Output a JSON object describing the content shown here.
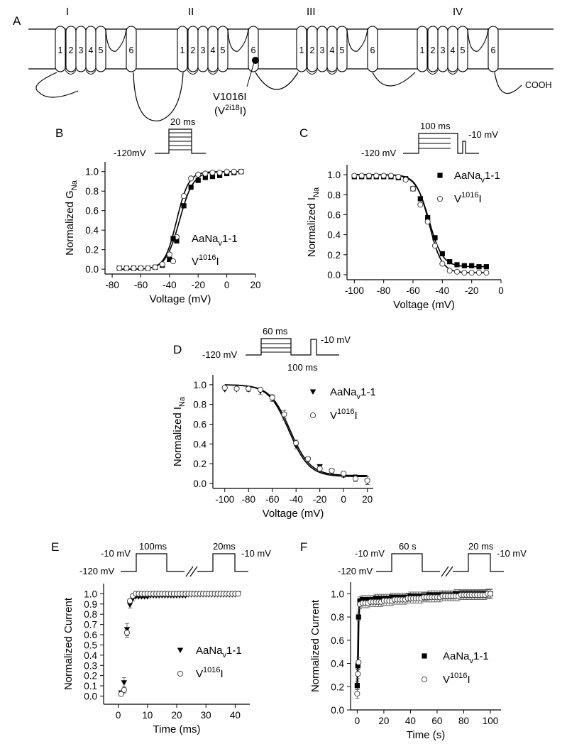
{
  "panel_a": {
    "letter": "A",
    "domains": [
      "I",
      "II",
      "III",
      "IV"
    ],
    "segments": [
      "1",
      "2",
      "3",
      "4",
      "5",
      "6"
    ],
    "mutation_label": "V1016I",
    "mutation_sub_pre": "(V",
    "mutation_sub_sup": "2i18",
    "mutation_sub_post": "I)",
    "terminus": "COOH"
  },
  "legend": {
    "wt_pre": "AaNa",
    "wt_sub": "v",
    "wt_post": "1-1",
    "mut_pre": "V",
    "mut_sup": "1016",
    "mut_post": "I"
  },
  "protocols": {
    "b": {
      "duration": "20 ms",
      "hold": "-120mV"
    },
    "c": {
      "duration": "100 ms",
      "test": "-10 mV",
      "hold": "-120 mV"
    },
    "d": {
      "duration": "60 ms",
      "test": "-10 mV",
      "hold": "-120 mV",
      "gap": "100 ms"
    },
    "e": {
      "pulse1": "100ms",
      "pulse2": "20ms",
      "v1": "-10 mV",
      "v2": "-10 mV",
      "hold": "-120 mV"
    },
    "f": {
      "pulse1": "60 s",
      "pulse2": "20 ms",
      "v1": "-10 mV",
      "v2": "-10 mV",
      "hold": "-120 mV"
    }
  },
  "chart_data": [
    {
      "panel": "B",
      "type": "scatter",
      "xlabel": "Voltage (mV)",
      "ylabel_pre": "Normalized G",
      "ylabel_sub": "Na",
      "xlim": [
        -85,
        20
      ],
      "ylim": [
        -0.05,
        1.1
      ],
      "xticks": [
        -80,
        -60,
        -40,
        -20,
        0,
        20
      ],
      "yticks": [
        0.0,
        0.2,
        0.4,
        0.6,
        0.8,
        1.0
      ],
      "series": [
        {
          "marker": "filled-square",
          "fit_v50": -33,
          "fit_k": 4.8,
          "x": [
            -75,
            -70,
            -65,
            -60,
            -55,
            -50,
            -45,
            -40,
            -35,
            -30,
            -25,
            -20,
            -15,
            -10,
            -5,
            0,
            5,
            10
          ],
          "y": [
            0.01,
            0.01,
            0.01,
            0.01,
            0.01,
            0.02,
            0.04,
            0.1,
            0.29,
            0.65,
            0.84,
            0.91,
            0.94,
            0.95,
            0.96,
            0.98,
            0.99,
            1.0
          ]
        },
        {
          "marker": "open-circle",
          "fit_v50": -35,
          "fit_k": 4.2,
          "x": [
            -75,
            -70,
            -65,
            -60,
            -55,
            -50,
            -45,
            -40,
            -35,
            -30,
            -25,
            -20,
            -15,
            -10,
            -5,
            0,
            5,
            10
          ],
          "y": [
            0.01,
            0.01,
            0.01,
            0.01,
            0.01,
            0.02,
            0.05,
            0.15,
            0.33,
            0.75,
            0.93,
            0.97,
            0.98,
            0.99,
            0.99,
            1.0,
            1.0,
            1.0
          ]
        }
      ]
    },
    {
      "panel": "C",
      "type": "scatter",
      "xlabel": "Voltage (mV)",
      "ylabel_pre": "Normalized I",
      "ylabel_sub": "Na",
      "xlim": [
        -105,
        0
      ],
      "ylim": [
        -0.05,
        1.1
      ],
      "xticks": [
        -100,
        -80,
        -60,
        -40,
        -20,
        0
      ],
      "yticks": [
        0.0,
        0.2,
        0.4,
        0.6,
        0.8,
        1.0
      ],
      "series": [
        {
          "marker": "filled-square",
          "fit_v50": -49,
          "fit_k": 4.6,
          "fit_c": 0.08,
          "x": [
            -100,
            -95,
            -90,
            -85,
            -80,
            -75,
            -70,
            -65,
            -60,
            -55,
            -50,
            -45,
            -40,
            -35,
            -30,
            -25,
            -20,
            -15,
            -10
          ],
          "y": [
            0.98,
            0.98,
            0.98,
            0.98,
            0.98,
            0.98,
            0.97,
            0.96,
            0.86,
            0.76,
            0.57,
            0.37,
            0.21,
            0.13,
            0.1,
            0.09,
            0.09,
            0.08,
            0.08
          ]
        },
        {
          "marker": "open-circle",
          "fit_v50": -49,
          "fit_k": 4.3,
          "fit_c": 0.02,
          "x": [
            -100,
            -95,
            -90,
            -85,
            -80,
            -75,
            -70,
            -65,
            -60,
            -55,
            -50,
            -45,
            -40,
            -35,
            -30,
            -25,
            -20,
            -15,
            -10
          ],
          "y": [
            0.99,
            0.99,
            0.99,
            0.99,
            0.99,
            0.99,
            0.98,
            0.95,
            0.86,
            0.7,
            0.53,
            0.29,
            0.11,
            0.04,
            0.03,
            0.02,
            0.02,
            0.02,
            0.02
          ]
        }
      ]
    },
    {
      "panel": "D",
      "type": "scatter",
      "xlabel": "Voltage (mV)",
      "ylabel_pre": "Normalized I",
      "ylabel_sub": "Na",
      "xlim": [
        -110,
        25
      ],
      "ylim": [
        -0.05,
        1.1
      ],
      "xticks": [
        -100,
        -80,
        -60,
        -40,
        -20,
        0,
        20
      ],
      "yticks": [
        0.0,
        0.2,
        0.4,
        0.6,
        0.8,
        1.0
      ],
      "series": [
        {
          "marker": "filled-triangle-down",
          "fit_v50": -46,
          "fit_k": 8.5,
          "fit_c": 0.07,
          "x": [
            -100,
            -90,
            -80,
            -70,
            -60,
            -50,
            -40,
            -30,
            -20,
            -10,
            0,
            10,
            20
          ],
          "y": [
            0.95,
            0.95,
            0.95,
            0.93,
            0.86,
            0.69,
            0.38,
            0.24,
            0.17,
            0.12,
            0.08,
            0.06,
            0.02
          ],
          "err": [
            0.01,
            0.01,
            0.02,
            0.03,
            0.03,
            0.05,
            0.03,
            0.02,
            0.02,
            0.02,
            0.02,
            0.03,
            0.03
          ]
        },
        {
          "marker": "open-circle",
          "fit_v50": -45,
          "fit_k": 8.5,
          "fit_c": 0.08,
          "x": [
            -100,
            -90,
            -80,
            -70,
            -60,
            -50,
            -40,
            -30,
            -20,
            -10,
            0,
            10,
            20
          ],
          "y": [
            0.97,
            0.96,
            0.96,
            0.95,
            0.87,
            0.7,
            0.41,
            0.25,
            0.15,
            0.13,
            0.1,
            0.05,
            0.03
          ],
          "err": [
            0.01,
            0.01,
            0.01,
            0.02,
            0.03,
            0.04,
            0.03,
            0.02,
            0.02,
            0.02,
            0.02,
            0.03,
            0.04
          ]
        }
      ]
    },
    {
      "panel": "E",
      "type": "scatter",
      "xlabel": "Time (ms)",
      "ylabel": "Normalized Current",
      "xlim": [
        -5,
        45
      ],
      "ylim": [
        -0.08,
        1.1
      ],
      "xticks": [
        0,
        10,
        20,
        30,
        40
      ],
      "yticks": [
        0.0,
        0.1,
        0.2,
        0.3,
        0.4,
        0.5,
        0.6,
        0.7,
        0.8,
        0.9,
        1.0
      ],
      "series": [
        {
          "marker": "filled-triangle-down",
          "x": [
            1,
            2,
            3,
            4,
            5,
            6,
            7,
            8,
            9,
            10,
            11,
            12,
            13,
            14,
            15,
            16,
            17,
            18,
            19,
            20,
            21,
            22,
            23,
            24,
            25,
            26,
            27,
            28,
            29,
            30,
            31,
            32,
            33,
            34,
            35,
            36,
            37,
            38,
            39,
            40,
            41
          ],
          "y": [
            0.03,
            0.13,
            0.65,
            0.89,
            0.95,
            0.97,
            0.97,
            0.97,
            0.97,
            0.97,
            0.98,
            0.98,
            0.98,
            0.98,
            0.98,
            0.98,
            0.98,
            0.98,
            0.98,
            0.98,
            0.98,
            0.98,
            0.98,
            0.99,
            0.99,
            0.99,
            0.99,
            0.99,
            0.99,
            0.99,
            0.99,
            0.99,
            0.99,
            0.99,
            0.99,
            0.99,
            0.99,
            0.99,
            0.99,
            0.99,
            1.0
          ],
          "err": [
            0.02,
            0.05,
            0.06,
            0.03,
            0.02,
            0.01,
            0.01,
            0.01,
            0.01,
            0.01,
            0.01,
            0.01,
            0.01,
            0.01,
            0.01,
            0.01,
            0.01,
            0.01,
            0.01,
            0.01,
            0.01,
            0.01,
            0.01,
            0.01,
            0.01,
            0.01,
            0.01,
            0.01,
            0.01,
            0.01,
            0.01,
            0.01,
            0.01,
            0.01,
            0.01,
            0.01,
            0.01,
            0.01,
            0.01,
            0.01,
            0.01
          ]
        },
        {
          "marker": "open-circle",
          "x": [
            1,
            2,
            3,
            4,
            5,
            6,
            7,
            8,
            9,
            10,
            11,
            12,
            13,
            14,
            15,
            16,
            17,
            18,
            19,
            20,
            21,
            22,
            23,
            24,
            25,
            26,
            27,
            28,
            29,
            30,
            31,
            32,
            33,
            34,
            35,
            36,
            37,
            38,
            39,
            40,
            41
          ],
          "y": [
            0.02,
            0.06,
            0.62,
            0.93,
            0.98,
            1.0,
            1.0,
            1.0,
            1.0,
            1.0,
            1.0,
            1.0,
            1.0,
            1.0,
            1.0,
            1.0,
            1.0,
            1.0,
            1.0,
            1.0,
            1.0,
            1.0,
            1.0,
            1.0,
            1.0,
            1.0,
            1.0,
            1.0,
            1.0,
            1.0,
            1.0,
            1.0,
            1.0,
            1.0,
            1.0,
            1.0,
            1.0,
            1.0,
            1.0,
            1.0,
            1.0
          ],
          "err": [
            0.01,
            0.03,
            0.05,
            0.02,
            0.01,
            0.01,
            0.01,
            0.01,
            0.01,
            0.01,
            0.01,
            0.01,
            0.01,
            0.01,
            0.01,
            0.01,
            0.01,
            0.01,
            0.01,
            0.01,
            0.01,
            0.01,
            0.01,
            0.01,
            0.01,
            0.01,
            0.01,
            0.01,
            0.01,
            0.01,
            0.01,
            0.01,
            0.01,
            0.01,
            0.01,
            0.01,
            0.01,
            0.01,
            0.01,
            0.01,
            0.01
          ]
        }
      ]
    },
    {
      "panel": "F",
      "type": "scatter",
      "xlabel": "Time (s)",
      "ylabel": "Normalized Current",
      "xlim": [
        -5,
        108
      ],
      "ylim": [
        0.0,
        1.1
      ],
      "xticks": [
        0,
        20,
        40,
        60,
        80,
        100
      ],
      "yticks": [
        0.0,
        0.2,
        0.4,
        0.6,
        0.8,
        1.0
      ],
      "series": [
        {
          "marker": "filled-square",
          "plateau_start": 0.94,
          "plateau_end": 1.0,
          "err": 0.035,
          "x": [
            0,
            0.5,
            1,
            2,
            4,
            6,
            8,
            10,
            12,
            14,
            16,
            18,
            20,
            22,
            24,
            26,
            28,
            30,
            32,
            34,
            36,
            38,
            40,
            42,
            44,
            46,
            48,
            50,
            52,
            54,
            56,
            58,
            60,
            62,
            64,
            66,
            68,
            70,
            72,
            74,
            76,
            78,
            80,
            82,
            84,
            86,
            88,
            90,
            92,
            94,
            96,
            98,
            100
          ],
          "y": [
            0.21,
            0.38,
            0.8,
            0.94,
            0.95,
            0.95,
            0.95,
            0.95,
            0.95,
            0.96,
            0.96,
            0.96,
            0.96,
            0.96,
            0.96,
            0.97,
            0.97,
            0.97,
            0.97,
            0.97,
            0.97,
            0.97,
            0.98,
            0.98,
            0.98,
            0.98,
            0.98,
            0.98,
            0.98,
            0.99,
            0.99,
            0.99,
            0.99,
            0.99,
            0.99,
            0.99,
            0.99,
            0.99,
            0.99,
            1.0,
            1.0,
            1.0,
            1.0,
            1.0,
            1.0,
            1.0,
            1.0,
            1.0,
            1.0,
            1.0,
            1.0,
            1.0,
            1.0
          ]
        },
        {
          "marker": "open-circle",
          "err": 0.04,
          "x": [
            0,
            0.5,
            1,
            2,
            4,
            6,
            8,
            10,
            12,
            14,
            16,
            18,
            20,
            22,
            24,
            26,
            28,
            30,
            32,
            34,
            36,
            38,
            40,
            42,
            44,
            46,
            48,
            50,
            52,
            54,
            56,
            58,
            60,
            62,
            64,
            66,
            68,
            70,
            72,
            74,
            76,
            78,
            80,
            82,
            84,
            86,
            88,
            90,
            92,
            94,
            96,
            98,
            100
          ],
          "y": [
            0.14,
            0.31,
            0.41,
            0.91,
            0.92,
            0.92,
            0.92,
            0.93,
            0.93,
            0.93,
            0.93,
            0.93,
            0.94,
            0.94,
            0.94,
            0.94,
            0.95,
            0.95,
            0.95,
            0.95,
            0.95,
            0.96,
            0.96,
            0.96,
            0.96,
            0.96,
            0.96,
            0.97,
            0.97,
            0.97,
            0.97,
            0.97,
            0.97,
            0.97,
            0.98,
            0.98,
            0.98,
            0.98,
            0.98,
            0.98,
            0.98,
            0.99,
            0.99,
            0.99,
            0.99,
            0.99,
            0.99,
            0.99,
            0.99,
            0.99,
            0.99,
            1.0,
            1.0
          ]
        }
      ]
    }
  ]
}
